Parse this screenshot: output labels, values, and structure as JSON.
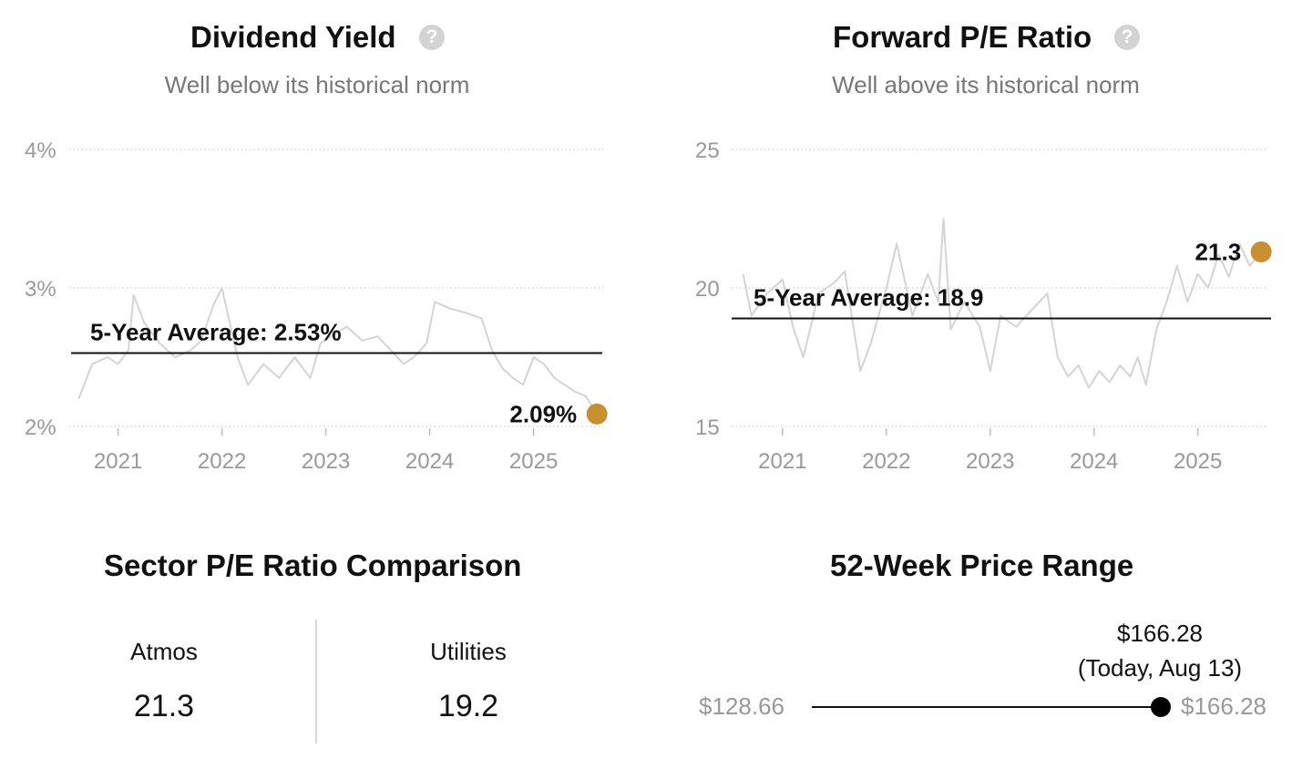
{
  "colors": {
    "accent": "#c8902e",
    "line": "#111111",
    "series": "#d4d4d4",
    "grid": "#cfcfcf",
    "muted": "#999999"
  },
  "dividend": {
    "title": "Dividend Yield",
    "subtitle": "Well below its historical norm",
    "help_icon": "question-circle-icon",
    "avg_label": "5-Year Average: 2.53%",
    "current_label": "2.09%"
  },
  "pe": {
    "title": "Forward P/E Ratio",
    "subtitle": "Well above its historical norm",
    "help_icon": "question-circle-icon",
    "avg_label": "5-Year Average: 18.9",
    "current_label": "21.3"
  },
  "sector": {
    "title": "Sector P/E Ratio Comparison",
    "items": [
      {
        "label": "Atmos",
        "value": "21.3"
      },
      {
        "label": "Utilities",
        "value": "19.2"
      }
    ]
  },
  "range": {
    "title": "52-Week Price Range",
    "low_label": "$128.66",
    "high_label": "$166.28",
    "current_price": "$166.28",
    "current_note": "(Today, Aug 13)",
    "low": 128.66,
    "high": 166.28,
    "current": 166.28
  },
  "chart_data": [
    {
      "type": "line",
      "title": "Dividend Yield",
      "subtitle": "Well below its historical norm",
      "y_ticks": [
        2,
        3,
        4
      ],
      "y_tick_labels": [
        "2%",
        "3%",
        "4%"
      ],
      "ylim": [
        2,
        4
      ],
      "x_ticks": [
        2021,
        2022,
        2023,
        2024,
        2025
      ],
      "x_tick_labels": [
        "2021",
        "2022",
        "2023",
        "2024",
        "2025"
      ],
      "xlim": [
        2020.6,
        2025.67
      ],
      "grid": true,
      "average": 2.53,
      "current": {
        "x": 2025.61,
        "y": 2.09
      },
      "series": [
        {
          "x": [
            2020.62,
            2020.75,
            2020.9,
            2021.0,
            2021.1,
            2021.15,
            2021.25,
            2021.4,
            2021.55,
            2021.7,
            2021.8,
            2021.92,
            2022.0,
            2022.15,
            2022.25,
            2022.4,
            2022.55,
            2022.7,
            2022.85,
            2022.95,
            2023.05,
            2023.2,
            2023.35,
            2023.5,
            2023.6,
            2023.75,
            2023.85,
            2023.97,
            2024.05,
            2024.2,
            2024.35,
            2024.5,
            2024.6,
            2024.7,
            2024.8,
            2024.9,
            2025.0,
            2025.1,
            2025.2,
            2025.3,
            2025.4,
            2025.5,
            2025.61
          ],
          "y": [
            2.2,
            2.45,
            2.5,
            2.45,
            2.55,
            2.95,
            2.75,
            2.6,
            2.5,
            2.55,
            2.62,
            2.88,
            3.0,
            2.5,
            2.3,
            2.45,
            2.35,
            2.5,
            2.35,
            2.6,
            2.65,
            2.72,
            2.62,
            2.65,
            2.57,
            2.45,
            2.5,
            2.6,
            2.9,
            2.85,
            2.82,
            2.78,
            2.55,
            2.42,
            2.35,
            2.3,
            2.5,
            2.45,
            2.35,
            2.3,
            2.25,
            2.22,
            2.09
          ]
        }
      ]
    },
    {
      "type": "line",
      "title": "Forward P/E Ratio",
      "subtitle": "Well above its historical norm",
      "y_ticks": [
        15,
        20,
        25
      ],
      "y_tick_labels": [
        "15",
        "20",
        "25"
      ],
      "ylim": [
        15,
        25
      ],
      "x_ticks": [
        2021,
        2022,
        2023,
        2024,
        2025
      ],
      "x_tick_labels": [
        "2021",
        "2022",
        "2023",
        "2024",
        "2025"
      ],
      "xlim": [
        2020.58,
        2025.67
      ],
      "grid": true,
      "average": 18.9,
      "current": {
        "x": 2025.61,
        "y": 21.3
      },
      "series": [
        {
          "x": [
            2020.62,
            2020.7,
            2020.85,
            2021.0,
            2021.1,
            2021.2,
            2021.35,
            2021.5,
            2021.6,
            2021.75,
            2021.85,
            2022.0,
            2022.1,
            2022.25,
            2022.4,
            2022.5,
            2022.55,
            2022.62,
            2022.75,
            2022.9,
            2023.0,
            2023.1,
            2023.25,
            2023.4,
            2023.55,
            2023.65,
            2023.75,
            2023.85,
            2023.95,
            2024.05,
            2024.15,
            2024.25,
            2024.35,
            2024.42,
            2024.5,
            2024.6,
            2024.7,
            2024.8,
            2024.9,
            2025.0,
            2025.1,
            2025.2,
            2025.3,
            2025.4,
            2025.5,
            2025.61
          ],
          "y": [
            20.5,
            19.0,
            19.8,
            20.3,
            18.6,
            17.5,
            19.8,
            20.2,
            20.6,
            17.0,
            18.0,
            20.0,
            21.6,
            19.0,
            20.5,
            19.5,
            22.5,
            18.5,
            19.5,
            18.6,
            17.0,
            19.0,
            18.6,
            19.2,
            19.8,
            17.5,
            16.8,
            17.2,
            16.4,
            17.0,
            16.6,
            17.2,
            16.8,
            17.5,
            16.5,
            18.5,
            19.5,
            20.8,
            19.5,
            20.5,
            20.0,
            21.2,
            20.4,
            21.6,
            20.8,
            21.3
          ]
        }
      ]
    }
  ]
}
